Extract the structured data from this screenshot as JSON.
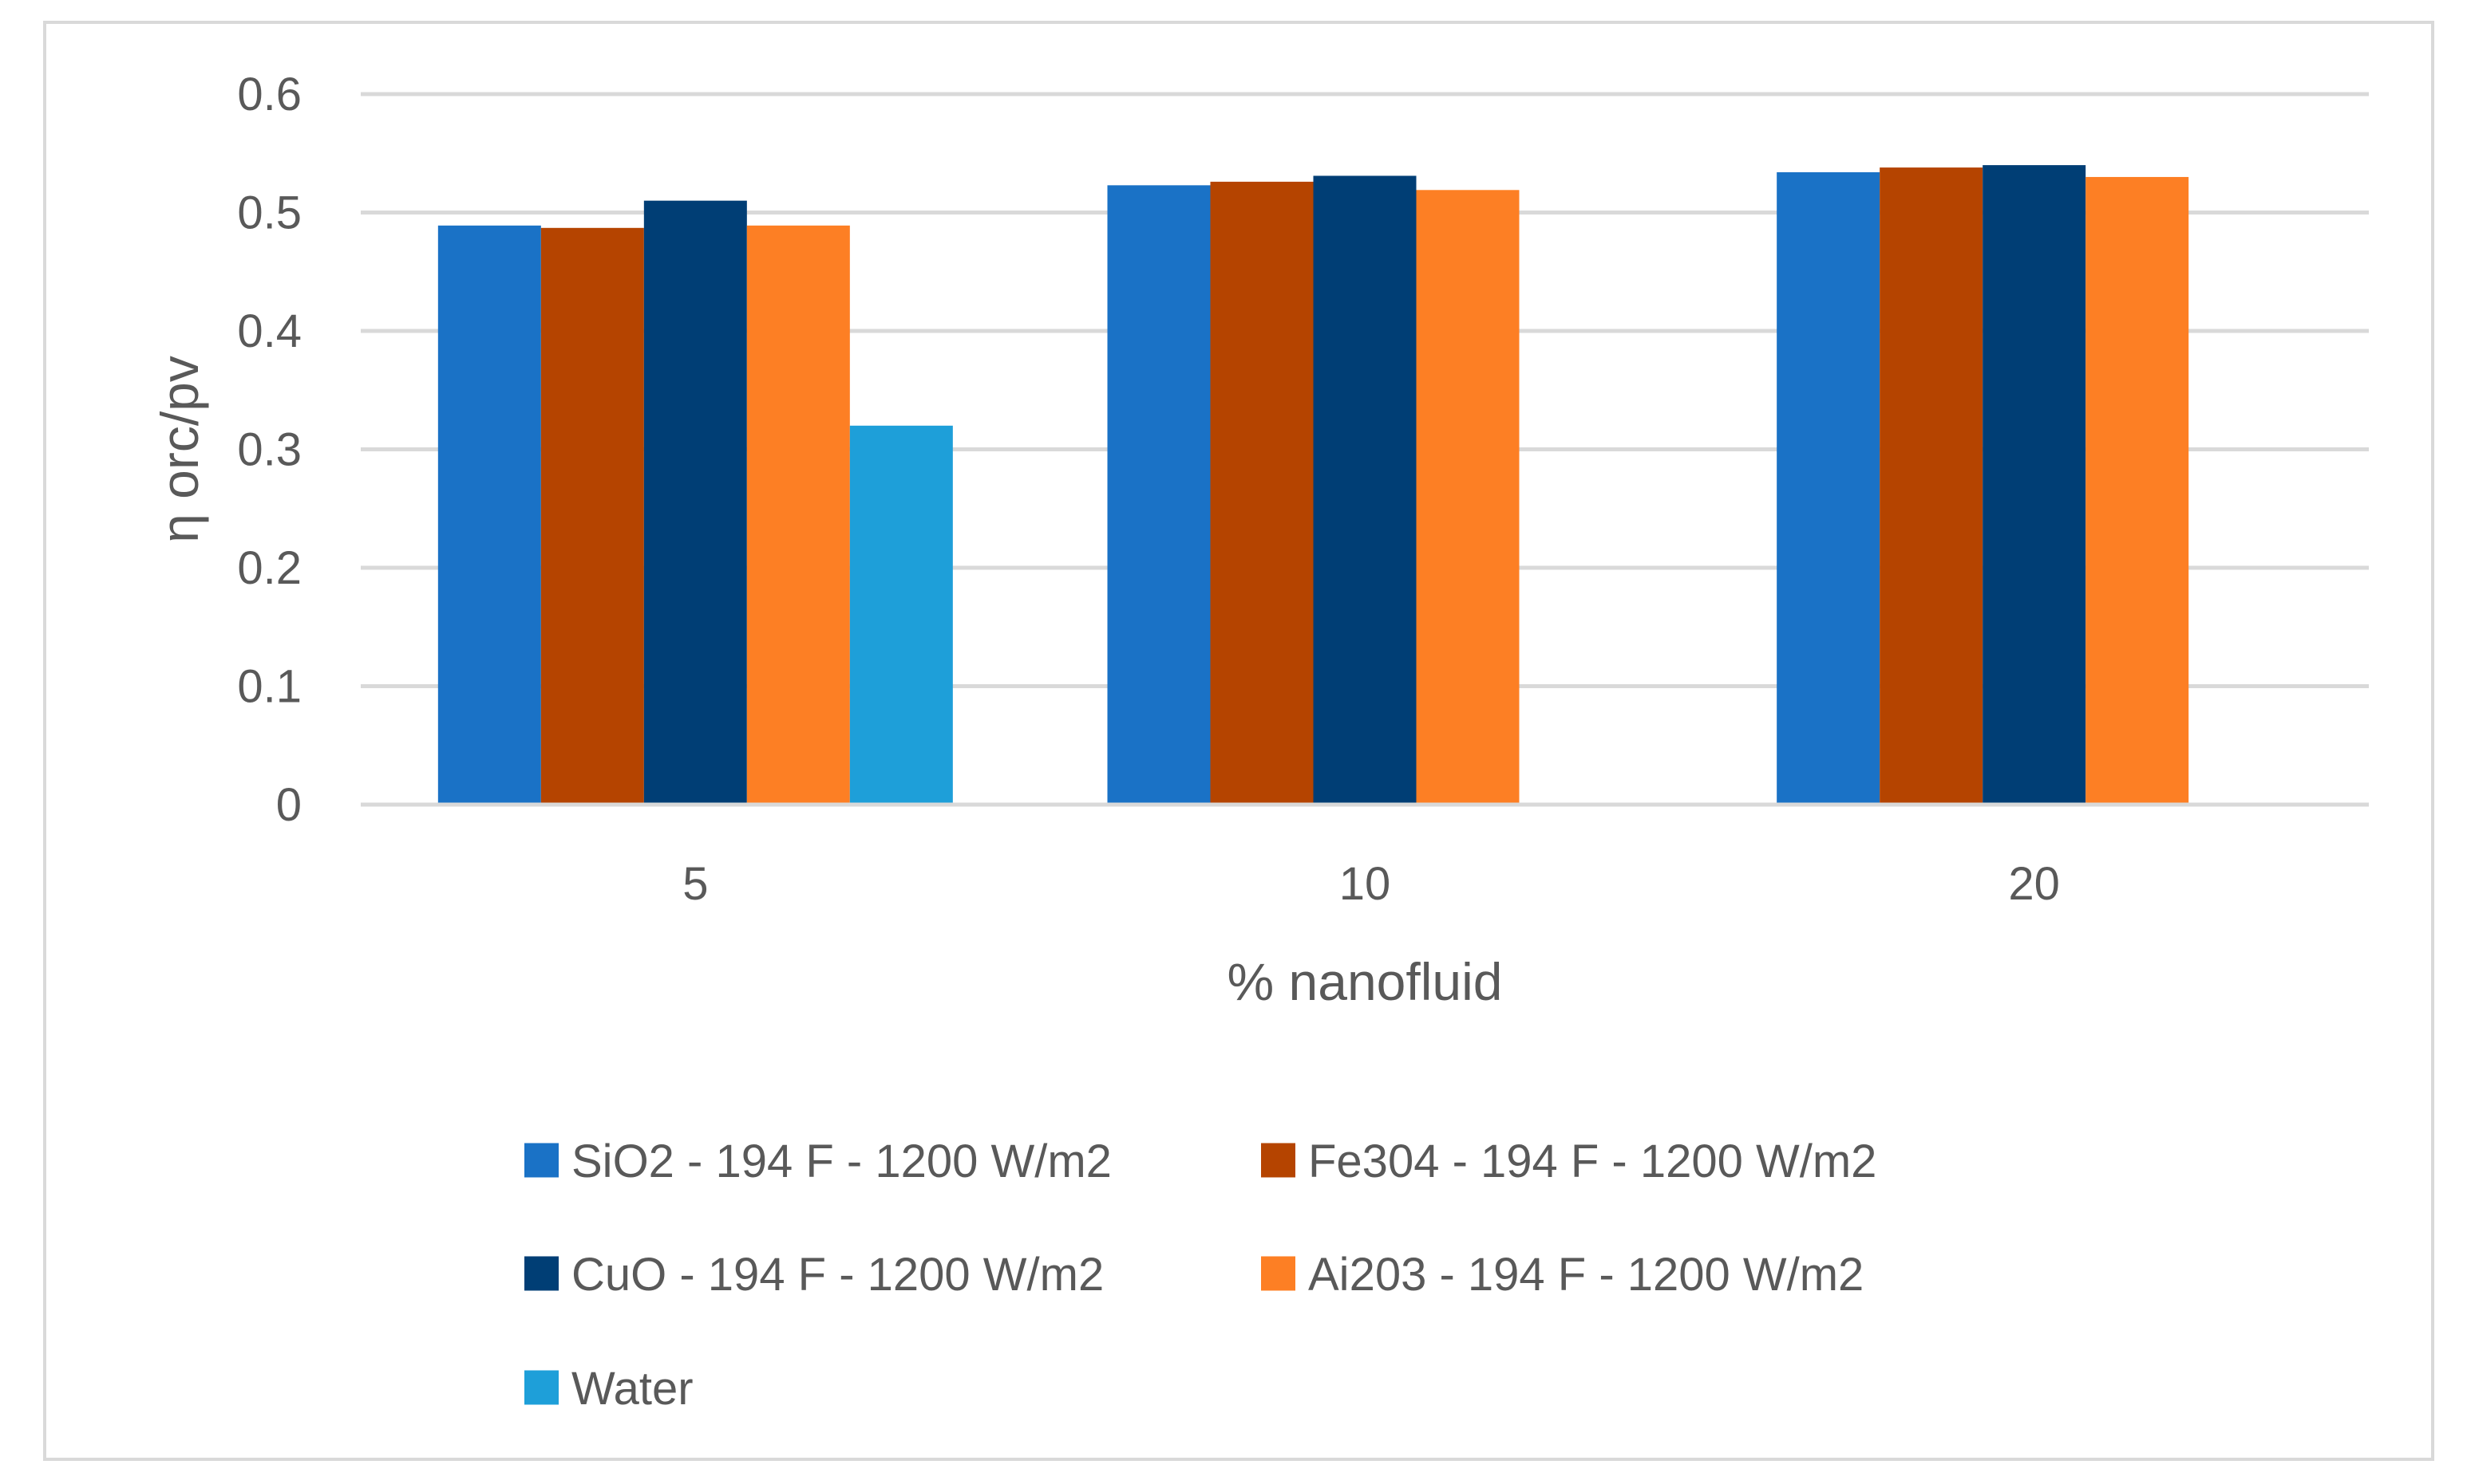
{
  "chart_data": {
    "type": "bar",
    "xlabel": "% nanofluid",
    "ylabel": "η orc/pv",
    "categories": [
      "5",
      "10",
      "20"
    ],
    "ylim": [
      0,
      0.6
    ],
    "yticks": [
      0,
      0.1,
      0.2,
      0.3,
      0.4,
      0.5,
      0.6
    ],
    "ytick_labels": [
      "0",
      "0.1",
      "0.2",
      "0.3",
      "0.4",
      "0.5",
      "0.6"
    ],
    "grid": true,
    "legend_position": "bottom",
    "series": [
      {
        "name": "SiO2 - 194 F - 1200 W/m2",
        "color": "#1a72c6",
        "values": [
          0.489,
          0.523,
          0.534
        ]
      },
      {
        "name": "Fe304 - 194 F - 1200 W/m2",
        "color": "#b54400",
        "values": [
          0.487,
          0.526,
          0.538
        ]
      },
      {
        "name": "CuO - 194 F - 1200 W/m2",
        "color": "#003e75",
        "values": [
          0.51,
          0.531,
          0.54
        ]
      },
      {
        "name": "Ai203 - 194 F - 1200 W/m2",
        "color": "#fd7f24",
        "values": [
          0.489,
          0.519,
          0.53
        ]
      },
      {
        "name": "Water",
        "color": "#1e9fd9",
        "values": [
          0.32,
          null,
          null
        ]
      }
    ]
  }
}
